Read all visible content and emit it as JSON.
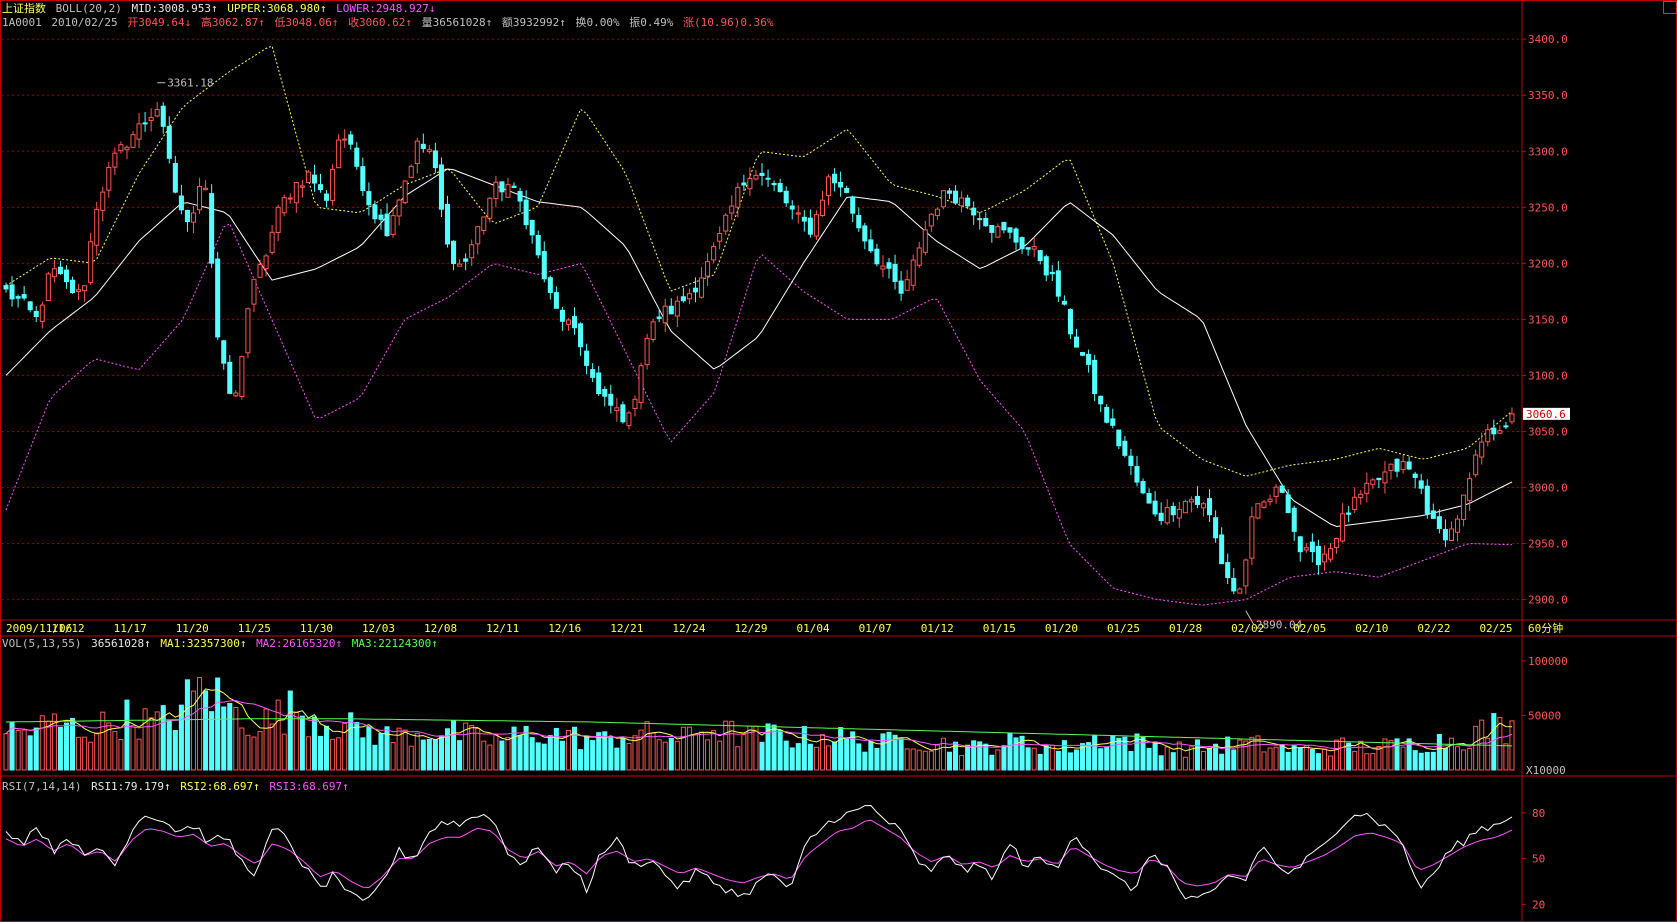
{
  "header": {
    "index_name": "上证指数",
    "boll_label": "BOLL(20,2)",
    "mid": "MID:3008.953↑",
    "upper": "UPPER:3068.980↑",
    "lower": "LOWER:2948.927↓",
    "code": "1A0001",
    "date": "2010/02/25",
    "open": "开3049.64↓",
    "high": "高3062.87↑",
    "low": "低3048.06↑",
    "close": "收3060.62↑",
    "volume": "量36561028↑",
    "amount": "额3932992↑",
    "turnover": "换0.00%",
    "amplitude": "振0.49%",
    "change": "涨(10.96)0.36%"
  },
  "vol_header": {
    "label": "VOL(5,13,55)",
    "value": "36561028↑",
    "ma1": "MA1:32357300↑",
    "ma2": "MA2:26165320↑",
    "ma3": "MA3:22124300↑"
  },
  "rsi_header": {
    "label": "RSI(7,14,14)",
    "rsi1": "RSI1:79.179↑",
    "rsi2": "RSI2:68.697↑",
    "rsi3": "RSI3:68.697↑"
  },
  "colors": {
    "background": "#000000",
    "frame": "#c00000",
    "grid": "#9a0000",
    "up": "#ff5454",
    "down": "#54ffff",
    "mid_line": "#ffffff",
    "upper_band": "#ffff54",
    "lower_band": "#ff54ff",
    "ma1": "#ffff54",
    "ma2": "#ff54ff",
    "ma3": "#54ff54",
    "rsi1": "#ffffff",
    "rsi2": "#ff54ff",
    "tick_text": "#ff5454",
    "date_text": "#ffff54"
  },
  "chart_data": [
    {
      "type": "candlestick",
      "title": "上证指数 BOLL(20,2)",
      "y_ticks": [
        "3400.0",
        "3350.0",
        "3300.0",
        "3250.0",
        "3200.0",
        "3150.0",
        "3100.0",
        "3050.0",
        "3000.0",
        "2950.0",
        "2900.0"
      ],
      "ylim": [
        2880,
        3410
      ],
      "x_date_labels": [
        "2009/11/06",
        "11/12",
        "11/17",
        "11/20",
        "11/25",
        "11/30",
        "12/03",
        "12/08",
        "12/11",
        "12/16",
        "12/21",
        "12/24",
        "12/29",
        "01/04",
        "01/07",
        "01/12",
        "01/15",
        "01/20",
        "01/25",
        "01/28",
        "02/02",
        "02/05",
        "02/10",
        "02/22",
        "02/25"
      ],
      "x_unit_label": "60分钟",
      "annotations": [
        {
          "text": "3361.18",
          "kind": "high",
          "value": 3361.18
        },
        {
          "text": "2890.04",
          "kind": "low",
          "value": 2890.04
        }
      ],
      "last_price_label": "3060.6",
      "bars": 250,
      "close_anchors": [
        3175,
        3165,
        3150,
        3195,
        3180,
        3170,
        3255,
        3290,
        3310,
        3325,
        3340,
        3270,
        3230,
        3290,
        3120,
        3070,
        3170,
        3205,
        3250,
        3270,
        3280,
        3255,
        3320,
        3290,
        3250,
        3230,
        3265,
        3305,
        3300,
        3215,
        3195,
        3230,
        3265,
        3270,
        3250,
        3205,
        3160,
        3145,
        3120,
        3080,
        3070,
        3060,
        3130,
        3155,
        3160,
        3175,
        3195,
        3225,
        3260,
        3285,
        3275,
        3260,
        3240,
        3230,
        3275,
        3270,
        3235,
        3210,
        3190,
        3170,
        3215,
        3250,
        3265,
        3255,
        3245,
        3230,
        3225,
        3215,
        3205,
        3180,
        3140,
        3110,
        3070,
        3045,
        3015,
        2985,
        2975,
        2985,
        2990,
        2980,
        2930,
        2900,
        2975,
        2990,
        3000,
        2945,
        2935,
        2945,
        2975,
        2990,
        3005,
        3015,
        3020,
        3000,
        2960,
        2960,
        2995,
        3040,
        3055,
        3060
      ],
      "mid_anchors": [
        3100,
        3140,
        3170,
        3220,
        3255,
        3245,
        3185,
        3195,
        3215,
        3260,
        3285,
        3270,
        3255,
        3250,
        3215,
        3140,
        3105,
        3135,
        3200,
        3260,
        3255,
        3220,
        3195,
        3215,
        3255,
        3225,
        3175,
        3150,
        3055,
        2990,
        2965,
        2970,
        2975,
        2985,
        3005
      ],
      "upper_anchors": [
        3180,
        3205,
        3200,
        3280,
        3340,
        3370,
        3395,
        3250,
        3245,
        3270,
        3285,
        3235,
        3250,
        3340,
        3280,
        3175,
        3190,
        3300,
        3295,
        3320,
        3270,
        3260,
        3245,
        3265,
        3295,
        3200,
        3055,
        3025,
        3010,
        3020,
        3025,
        3035,
        3025,
        3035,
        3068
      ],
      "lower_anchors": [
        2980,
        3080,
        3115,
        3105,
        3150,
        3240,
        3150,
        3060,
        3080,
        3150,
        3170,
        3200,
        3190,
        3200,
        3120,
        3040,
        3085,
        3210,
        3175,
        3150,
        3150,
        3170,
        3095,
        3050,
        2950,
        2910,
        2900,
        2895,
        2900,
        2920,
        2925,
        2920,
        2935,
        2950,
        2949
      ]
    },
    {
      "type": "bar",
      "title": "VOL(5,13,55)",
      "y_ticks": [
        "100000",
        "50000"
      ],
      "y_unit_label": "X10000",
      "ylim": [
        0,
        110000
      ],
      "ma_series": [
        "MA1",
        "MA2",
        "MA3"
      ],
      "volume_anchors": [
        37000,
        34000,
        38000,
        42000,
        40000,
        36000,
        38000,
        45000,
        48000,
        44000,
        42000,
        52000,
        65000,
        78000,
        62000,
        50000,
        45000,
        44000,
        52000,
        56000,
        48000,
        44000,
        40000,
        36000,
        34000,
        30000,
        32000,
        35000,
        36000,
        34000,
        31000,
        28000,
        27000,
        30000,
        33000,
        34000,
        32000,
        30000,
        28000,
        27000,
        31000,
        33000,
        32000,
        30000,
        28000,
        36000,
        38000,
        34000,
        31000,
        30000,
        33000,
        30000,
        29000,
        32000,
        30000,
        28000,
        26000,
        24000,
        27000,
        30000,
        25000,
        24000,
        22000,
        20000,
        22000,
        24000,
        26000,
        23000,
        21000,
        20000,
        24000,
        28000,
        30000,
        26000,
        24000,
        22000,
        20000,
        19000,
        21000,
        22000,
        23000,
        24000,
        22000,
        20000,
        18000,
        19000,
        20000,
        22000,
        21000,
        20000,
        22000,
        23000,
        24000,
        26000,
        28000,
        30000,
        36000,
        40000,
        36561
      ],
      "ma3_anchors": [
        44000,
        45000,
        46000,
        47000,
        47000,
        46000,
        45000,
        44000,
        42000,
        40000,
        38000,
        36000,
        34000,
        32000,
        30000,
        28000,
        26000,
        24000,
        22124
      ]
    },
    {
      "type": "line",
      "title": "RSI(7,14,14)",
      "y_ticks": [
        "80",
        "50",
        "20"
      ],
      "ylim": [
        15,
        95
      ],
      "series": [
        {
          "name": "RSI1",
          "anchors": [
            70,
            60,
            72,
            55,
            66,
            50,
            58,
            45,
            70,
            80,
            75,
            68,
            72,
            60,
            65,
            48,
            40,
            70,
            62,
            45,
            30,
            40,
            25,
            20,
            35,
            55,
            50,
            68,
            75,
            72,
            80,
            76,
            55,
            45,
            60,
            40,
            48,
            30,
            55,
            62,
            45,
            50,
            40,
            30,
            42,
            35,
            30,
            25,
            35,
            40,
            28,
            60,
            70,
            78,
            80,
            85,
            76,
            68,
            50,
            40,
            55,
            42,
            45,
            38,
            60,
            45,
            50,
            42,
            68,
            55,
            42,
            35,
            30,
            55,
            45,
            25,
            22,
            28,
            40,
            35,
            60,
            45,
            40,
            50,
            58,
            72,
            80,
            78,
            70,
            62,
            30,
            40,
            55,
            62,
            70,
            72,
            79
          ]
        },
        {
          "name": "RSI2",
          "anchors": [
            63,
            58,
            63,
            55,
            60,
            52,
            55,
            48,
            62,
            70,
            68,
            64,
            66,
            58,
            60,
            52,
            46,
            60,
            56,
            48,
            38,
            42,
            35,
            30,
            38,
            50,
            50,
            60,
            64,
            64,
            70,
            68,
            56,
            50,
            55,
            45,
            48,
            40,
            52,
            55,
            48,
            50,
            45,
            40,
            44,
            40,
            36,
            34,
            38,
            40,
            36,
            52,
            60,
            68,
            70,
            76,
            70,
            64,
            54,
            48,
            52,
            46,
            48,
            44,
            52,
            48,
            50,
            46,
            58,
            52,
            46,
            42,
            40,
            50,
            45,
            34,
            32,
            34,
            40,
            38,
            50,
            46,
            44,
            48,
            52,
            58,
            65,
            67,
            64,
            60,
            42,
            46,
            52,
            58,
            62,
            64,
            68.7
          ]
        }
      ]
    }
  ]
}
